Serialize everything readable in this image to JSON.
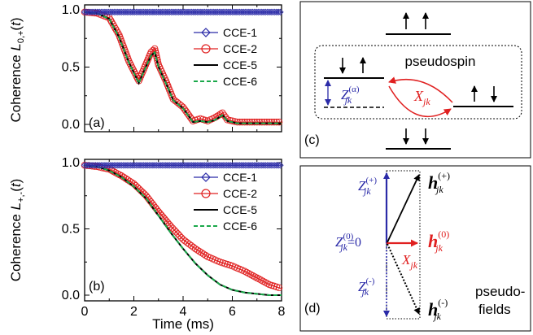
{
  "colors": {
    "cce1": "#2b2ba8",
    "cce2": "#e02020",
    "cce5": "#000000",
    "cce6": "#1aa84a",
    "blue_label": "#2b2ba8",
    "red_label": "#e02020"
  },
  "legend": [
    "CCE-1",
    "CCE-2",
    "CCE-5",
    "CCE-6"
  ],
  "x_ticks": [
    "0",
    "2",
    "4",
    "6",
    "8"
  ],
  "x_label": "Time (ms)",
  "chart_data": [
    {
      "type": "line",
      "panel": "(a)",
      "ylabel": "Coherence L0,+(t)",
      "xlabel": "",
      "xlim": [
        0,
        8
      ],
      "ylim": [
        0,
        1
      ],
      "y_ticks": [
        "0.0",
        "0.5",
        "1.0"
      ],
      "series": [
        {
          "name": "CCE-1",
          "x": [
            0,
            8
          ],
          "y": [
            0.98,
            0.98
          ]
        },
        {
          "name": "CCE-2",
          "x": [
            0,
            0.5,
            1.0,
            1.4,
            1.8,
            2.2,
            2.4,
            2.7,
            2.85,
            3.0,
            3.3,
            3.6,
            4.0,
            4.4,
            4.7,
            5.0,
            5.3,
            5.6,
            5.8,
            6.2,
            7.0,
            8.0
          ],
          "y": [
            0.98,
            0.97,
            0.93,
            0.78,
            0.55,
            0.38,
            0.48,
            0.63,
            0.66,
            0.52,
            0.38,
            0.22,
            0.15,
            0.03,
            0.05,
            0.03,
            0.06,
            0.1,
            0.04,
            0.02,
            0.02,
            0.02
          ]
        },
        {
          "name": "CCE-5",
          "x": [
            0,
            0.5,
            1.0,
            1.4,
            1.8,
            2.2,
            2.4,
            2.7,
            2.85,
            3.0,
            3.3,
            3.6,
            4.0,
            4.4,
            4.7,
            5.0,
            5.3,
            5.6,
            5.8,
            6.2,
            7.0,
            8.0
          ],
          "y": [
            0.98,
            0.97,
            0.92,
            0.76,
            0.54,
            0.36,
            0.46,
            0.6,
            0.63,
            0.5,
            0.36,
            0.21,
            0.14,
            0.02,
            0.03,
            0.02,
            0.04,
            0.08,
            0.03,
            0.01,
            0.01,
            0.01
          ]
        },
        {
          "name": "CCE-6",
          "x": [
            0,
            0.5,
            1.0,
            1.4,
            1.8,
            2.2,
            2.4,
            2.7,
            2.85,
            3.0,
            3.3,
            3.6,
            4.0,
            4.4,
            4.7,
            5.0,
            5.3,
            5.6,
            5.8,
            6.2,
            7.0,
            8.0
          ],
          "y": [
            0.98,
            0.97,
            0.92,
            0.76,
            0.54,
            0.36,
            0.46,
            0.6,
            0.63,
            0.5,
            0.36,
            0.21,
            0.14,
            0.02,
            0.03,
            0.02,
            0.04,
            0.08,
            0.03,
            0.01,
            0.01,
            0.01
          ]
        }
      ]
    },
    {
      "type": "line",
      "panel": "(b)",
      "ylabel": "Coherence L+,-(t)",
      "xlabel": "Time (ms)",
      "xlim": [
        0,
        8
      ],
      "ylim": [
        0,
        1
      ],
      "y_ticks": [
        "0.0",
        "0.5",
        "1.0"
      ],
      "series": [
        {
          "name": "CCE-1",
          "x": [
            0,
            8
          ],
          "y": [
            0.98,
            0.98
          ]
        },
        {
          "name": "CCE-2",
          "x": [
            0,
            0.5,
            1.0,
            1.5,
            2.0,
            2.5,
            3.0,
            3.5,
            4.0,
            4.5,
            5.0,
            5.5,
            6.0,
            6.5,
            7.0,
            7.5,
            8.0
          ],
          "y": [
            0.98,
            0.97,
            0.95,
            0.9,
            0.84,
            0.75,
            0.63,
            0.52,
            0.42,
            0.35,
            0.29,
            0.25,
            0.22,
            0.18,
            0.13,
            0.08,
            0.05
          ]
        },
        {
          "name": "CCE-5",
          "x": [
            0,
            0.5,
            1.0,
            1.5,
            2.0,
            2.5,
            3.0,
            3.5,
            4.0,
            4.5,
            5.0,
            5.5,
            6.0,
            6.5,
            7.0,
            7.5,
            8.0
          ],
          "y": [
            0.98,
            0.97,
            0.94,
            0.89,
            0.82,
            0.73,
            0.6,
            0.47,
            0.35,
            0.24,
            0.15,
            0.08,
            0.04,
            0.02,
            0.01,
            0.0,
            0.0
          ]
        },
        {
          "name": "CCE-6",
          "x": [
            0,
            0.5,
            1.0,
            1.5,
            2.0,
            2.5,
            3.0,
            3.5,
            4.0,
            4.5,
            5.0,
            5.5,
            6.0,
            6.5,
            7.0,
            7.5,
            8.0
          ],
          "y": [
            0.98,
            0.97,
            0.94,
            0.89,
            0.82,
            0.73,
            0.6,
            0.47,
            0.35,
            0.24,
            0.15,
            0.08,
            0.04,
            0.02,
            0.01,
            0.0,
            0.0
          ]
        }
      ]
    }
  ],
  "panel_c": {
    "label": "(c)",
    "pseudospin_text": "pseudospin",
    "z_label": "Z",
    "z_sup": "(α)",
    "z_sub": "jk",
    "x_label": "X",
    "x_sub": "jk"
  },
  "panel_d": {
    "label": "(d)",
    "z_plus": "Z",
    "z_plus_sup": "(+)",
    "z_zero": "Z",
    "z_zero_sup": "(0)",
    "z_zero_eq": "=0",
    "z_minus": "Z",
    "z_minus_sup": "(-)",
    "sub": "jk",
    "h": "h",
    "h_plus_sup": "(+)",
    "h_zero_sup": "(0)",
    "h_minus_sup": "(-)",
    "x_label": "X",
    "fields_line1": "pseudo-",
    "fields_line2": "fields"
  }
}
